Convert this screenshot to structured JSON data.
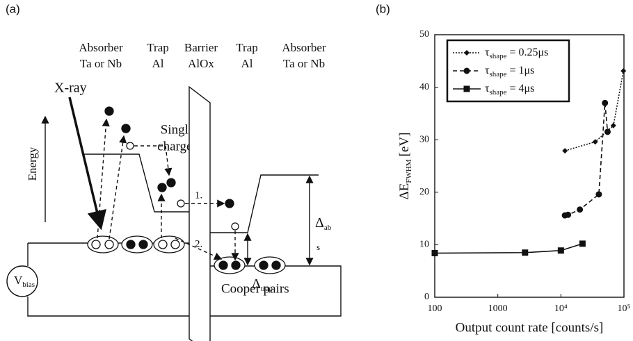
{
  "diagram": {
    "panel_label": "(a)",
    "columns": [
      {
        "title": "Absorber",
        "material": "Ta or Nb"
      },
      {
        "title": "Trap",
        "material": "Al"
      },
      {
        "title": "Barrier",
        "material": "AlOx"
      },
      {
        "title": "Trap",
        "material": "Al"
      },
      {
        "title": "Absorber",
        "material": "Ta or Nb"
      }
    ],
    "xray": "X-ray",
    "single_charges": [
      "Single",
      "charges"
    ],
    "energy": "Energy",
    "step1": "1.",
    "step2": "2.",
    "delta_ab": {
      "symbol": "Δ",
      "sub": "ab"
    },
    "delta_trap": {
      "symbol": "Δ",
      "sub": "trap"
    },
    "s": "s",
    "vbias": {
      "symbol": "V",
      "sub": "bias"
    },
    "cooper_pairs": "Cooper pairs"
  },
  "chart_data": {
    "type": "line",
    "panel_label": "(b)",
    "xlabel": "Output count rate [counts/s]",
    "ylabel": {
      "main": "ΔE",
      "sub": "FWHM",
      "unit": "[eV]"
    },
    "xscale": "log",
    "xlim": [
      100,
      100000
    ],
    "xticks": [
      100,
      1000,
      {
        "value": 10000,
        "label": "10⁴"
      },
      {
        "value": 100000,
        "label": "10⁵"
      }
    ],
    "ylim": [
      0,
      50
    ],
    "yticks": [
      0,
      10,
      20,
      30,
      40,
      50
    ],
    "grid": false,
    "legend": "upper-left",
    "series": [
      {
        "name": {
          "symbol": "τ",
          "sub": "shape",
          "rest": "= 0.25μs"
        },
        "color": "#111111",
        "dash": "dotted",
        "marker": "diamond",
        "x": [
          11600,
          35000,
          55000,
          68000,
          98000
        ],
        "values": [
          27.9,
          29.6,
          31.7,
          32.7,
          43.1
        ]
      },
      {
        "name": {
          "symbol": "τ",
          "sub": "shape",
          "rest": "= 1μs"
        },
        "color": "#111111",
        "dash": "dashed",
        "marker": "circle",
        "x": [
          11600,
          13000,
          20000,
          40000,
          50000,
          55000
        ],
        "values": [
          15.6,
          15.7,
          16.7,
          19.6,
          37.0,
          31.5
        ]
      },
      {
        "name": {
          "symbol": "τ",
          "sub": "shape",
          "rest": "= 4μs"
        },
        "color": "#111111",
        "dash": "solid",
        "marker": "square",
        "x": [
          100,
          2700,
          10000,
          22000
        ],
        "values": [
          8.4,
          8.5,
          8.9,
          10.2
        ]
      }
    ]
  }
}
